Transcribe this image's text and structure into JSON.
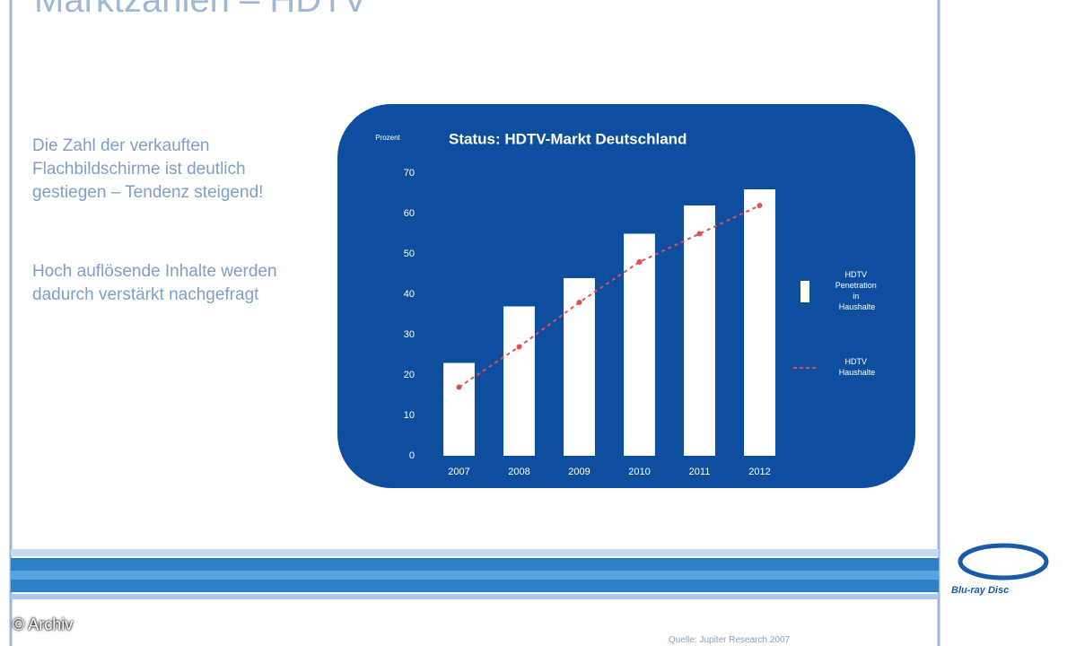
{
  "slide": {
    "title": "Marktzahlen – HDTV",
    "paragraphs": [
      "Die Zahl der verkauften Flachbildschirme ist deutlich gestiegen – Tendenz steigend!",
      "Hoch auflösende Inhalte werden dadurch verstärkt nachgefragt"
    ],
    "source": "Quelle: Jupiter Research 2007",
    "copyright": "© Archiv",
    "logo": "Blu-ray Disc"
  },
  "chart_data": {
    "type": "bar",
    "title": "Status: HDTV-Markt Deutschland",
    "y_label": "Prozent",
    "categories": [
      "2007",
      "2008",
      "2009",
      "2010",
      "2011",
      "2012"
    ],
    "series": [
      {
        "name": "HDTV Penetration in Haushalte",
        "type": "bar",
        "color": "#ffffff",
        "values": [
          23,
          37,
          44,
          55,
          62,
          66
        ]
      },
      {
        "name": "HDTV Haushalte",
        "type": "line",
        "color": "#e05050",
        "values": [
          17,
          27,
          38,
          48,
          55,
          62
        ]
      }
    ],
    "ylim": [
      0,
      70
    ],
    "yticks": [
      0,
      10,
      20,
      30,
      40,
      50,
      60,
      70
    ],
    "grid": false
  }
}
